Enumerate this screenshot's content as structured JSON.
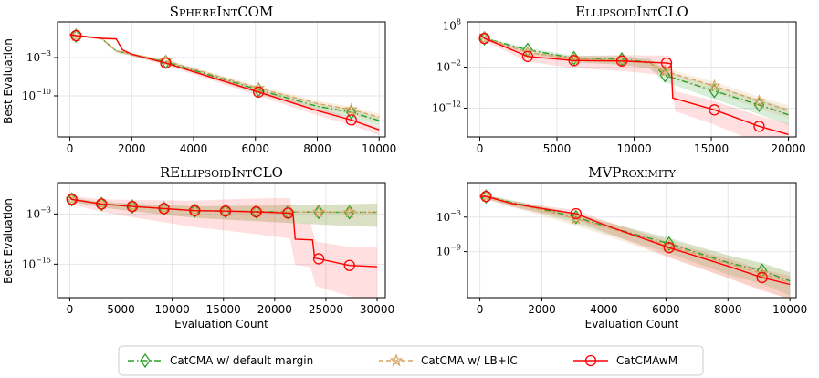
{
  "figure": {
    "legend": [
      {
        "label": "CatCMA w/ default margin",
        "color": "#2ca02c",
        "style": "dashdot",
        "marker": "diamond"
      },
      {
        "label": "CatCMA w/ LB+IC",
        "color": "#d9a25e",
        "style": "dashed",
        "marker": "star"
      },
      {
        "label": "CatCMAwM",
        "color": "#ff0000",
        "style": "solid",
        "marker": "circle"
      }
    ]
  },
  "chart_data": [
    {
      "type": "line",
      "title": "SphereIntCOM",
      "xlabel": "",
      "ylabel": "Best Evaluation",
      "xlim": [
        -400,
        10200
      ],
      "ylim": [
        -17.5,
        3.5
      ],
      "yscale": "log10",
      "xticks": [
        0,
        2000,
        4000,
        6000,
        8000,
        10000
      ],
      "yticks": [
        {
          "exp": -3,
          "label": "10"
        },
        {
          "exp": -10,
          "label": "10"
        }
      ],
      "grid": true,
      "series": [
        {
          "name": "CatCMA w/ default margin",
          "x": [
            0,
            200,
            1000,
            1500,
            2000,
            3100,
            4000,
            6100,
            8000,
            9100,
            10000
          ],
          "y": [
            1.2,
            1.0,
            0.6,
            -1.8,
            -2.4,
            -3.8,
            -5.3,
            -8.9,
            -11.9,
            -13.0,
            -14.5
          ],
          "markers_x": [
            200,
            3100,
            6100,
            9100
          ]
        },
        {
          "name": "CatCMA w/ LB+IC",
          "x": [
            0,
            200,
            1000,
            1500,
            2000,
            3100,
            4000,
            6100,
            8000,
            9100,
            10000
          ],
          "y": [
            1.2,
            1.0,
            0.6,
            -1.8,
            -2.4,
            -3.6,
            -5.1,
            -8.6,
            -11.4,
            -12.5,
            -13.9
          ],
          "markers_x": [
            200,
            3100,
            6100,
            9100
          ]
        },
        {
          "name": "CatCMAwM",
          "x": [
            0,
            200,
            1000,
            1500,
            1700,
            2000,
            3100,
            4000,
            6100,
            8000,
            9100,
            10000
          ],
          "y": [
            1.2,
            1.0,
            0.5,
            0.4,
            -1.6,
            -2.4,
            -4.0,
            -5.6,
            -9.3,
            -12.7,
            -14.4,
            -16.2
          ],
          "markers_x": [
            200,
            3100,
            6100,
            9100
          ]
        }
      ]
    },
    {
      "type": "line",
      "title": "EllipsoidIntCLO",
      "xlabel": "",
      "ylabel": "",
      "xlim": [
        -800,
        20500
      ],
      "ylim": [
        -19,
        9
      ],
      "yscale": "log10",
      "xticks": [
        0,
        5000,
        10000,
        15000,
        20000
      ],
      "yticks": [
        {
          "exp": 8,
          "label": "10"
        },
        {
          "exp": -2,
          "label": "10"
        },
        {
          "exp": -12,
          "label": "10"
        }
      ],
      "grid": true,
      "series": [
        {
          "name": "CatCMA w/ default margin",
          "x": [
            0,
            300,
            3100,
            6100,
            9200,
            11000,
            12000,
            15200,
            18100,
            20000
          ],
          "y": [
            6.0,
            5.0,
            2.2,
            0.2,
            -0.1,
            -0.8,
            -4.0,
            -7.8,
            -11.2,
            -13.6
          ],
          "markers_x": [
            300,
            3100,
            6100,
            9200,
            12000,
            15200,
            18100
          ]
        },
        {
          "name": "CatCMA w/ LB+IC",
          "x": [
            0,
            300,
            3100,
            6100,
            9200,
            11000,
            12000,
            15200,
            18100,
            20000
          ],
          "y": [
            6.0,
            5.0,
            1.6,
            0.0,
            -0.3,
            -1.0,
            -3.0,
            -6.6,
            -10.3,
            -12.5
          ],
          "markers_x": [
            300,
            3100,
            6100,
            9200,
            12000,
            15200,
            18100
          ]
        },
        {
          "name": "CatCMAwM",
          "x": [
            0,
            300,
            3100,
            6100,
            9200,
            12100,
            12400,
            12500,
            15200,
            18100,
            20000
          ],
          "y": [
            6.0,
            5.0,
            0.6,
            -0.4,
            -0.5,
            -1.0,
            -1.2,
            -9.5,
            -12.4,
            -16.4,
            -18.4
          ],
          "markers_x": [
            300,
            3100,
            6100,
            9200,
            12100,
            15200,
            18100
          ]
        }
      ]
    },
    {
      "type": "line",
      "title": "REllipsoidIntCLO",
      "xlabel": "Evaluation Count",
      "ylabel": "Best Evaluation",
      "xlim": [
        -1200,
        30800
      ],
      "ylim": [
        -23,
        4.5
      ],
      "yscale": "log10",
      "xticks": [
        0,
        5000,
        10000,
        15000,
        20000,
        25000,
        30000
      ],
      "yticks": [
        {
          "exp": -3,
          "label": "10"
        },
        {
          "exp": -15,
          "label": "10"
        }
      ],
      "grid": true,
      "series": [
        {
          "name": "CatCMA w/ default margin",
          "x": [
            0,
            200,
            3100,
            6100,
            9200,
            12200,
            15200,
            18200,
            21300,
            24300,
            27300,
            30000
          ],
          "y": [
            1.0,
            0.5,
            -0.6,
            -1.2,
            -1.7,
            -2.2,
            -2.3,
            -2.4,
            -2.5,
            -2.55,
            -2.6,
            -2.6
          ],
          "markers_x": [
            200,
            3100,
            6100,
            9200,
            12200,
            15200,
            18200,
            21300,
            24300,
            27300
          ]
        },
        {
          "name": "CatCMA w/ LB+IC",
          "x": [
            0,
            200,
            3100,
            6100,
            9200,
            12200,
            15200,
            18200,
            21300,
            24300,
            27300,
            30000
          ],
          "y": [
            1.0,
            0.5,
            -0.6,
            -1.2,
            -1.7,
            -2.2,
            -2.3,
            -2.4,
            -2.5,
            -2.55,
            -2.6,
            -2.6
          ],
          "markers_x": [
            200,
            3100,
            6100,
            9200,
            12200,
            15200,
            18200,
            21300,
            24300,
            27300
          ]
        },
        {
          "name": "CatCMAwM",
          "x": [
            0,
            200,
            3100,
            6100,
            9200,
            12200,
            15200,
            18200,
            21400,
            21800,
            22000,
            23700,
            23900,
            27300,
            30000
          ],
          "y": [
            1.0,
            0.5,
            -0.6,
            -1.2,
            -1.7,
            -2.2,
            -2.3,
            -2.5,
            -2.8,
            -3.0,
            -9.0,
            -9.2,
            -13.5,
            -15.3,
            -15.6
          ],
          "markers_x": [
            200,
            3100,
            6100,
            9200,
            12200,
            15200,
            18200,
            21300,
            24300,
            27300
          ]
        }
      ]
    },
    {
      "type": "line",
      "title": "MVProximity",
      "xlabel": "Evaluation Count",
      "ylabel": "",
      "xlim": [
        -400,
        10200
      ],
      "ylim": [
        -17,
        3
      ],
      "yscale": "log10",
      "xticks": [
        0,
        2000,
        4000,
        6000,
        8000,
        10000
      ],
      "yticks": [
        {
          "exp": -3,
          "label": "10"
        },
        {
          "exp": -9,
          "label": "10"
        }
      ],
      "grid": true,
      "series": [
        {
          "name": "CatCMA w/ default margin",
          "x": [
            0,
            200,
            1000,
            2000,
            3100,
            4000,
            6100,
            8000,
            9100,
            10000
          ],
          "y": [
            0.6,
            0.6,
            -0.4,
            -1.6,
            -3.0,
            -4.5,
            -7.6,
            -10.9,
            -12.3,
            -14.1
          ],
          "markers_x": [
            200,
            3100,
            6100,
            9100
          ]
        },
        {
          "name": "CatCMA w/ LB+IC",
          "x": [
            0,
            200,
            1000,
            2000,
            3100,
            4000,
            6100,
            8000,
            9100,
            10000
          ],
          "y": [
            0.6,
            0.6,
            -0.5,
            -1.8,
            -3.3,
            -4.6,
            -8.0,
            -11.1,
            -12.8,
            -14.4
          ],
          "markers_x": [
            200,
            3100,
            6100,
            9100
          ]
        },
        {
          "name": "CatCMAwM",
          "x": [
            0,
            200,
            1000,
            2000,
            3100,
            4000,
            6100,
            8000,
            9100,
            10000
          ],
          "y": [
            0.6,
            0.6,
            -0.6,
            -1.5,
            -2.4,
            -4.3,
            -8.3,
            -11.5,
            -13.5,
            -14.7
          ],
          "markers_x": [
            200,
            3100,
            6100,
            9100
          ]
        }
      ]
    }
  ]
}
